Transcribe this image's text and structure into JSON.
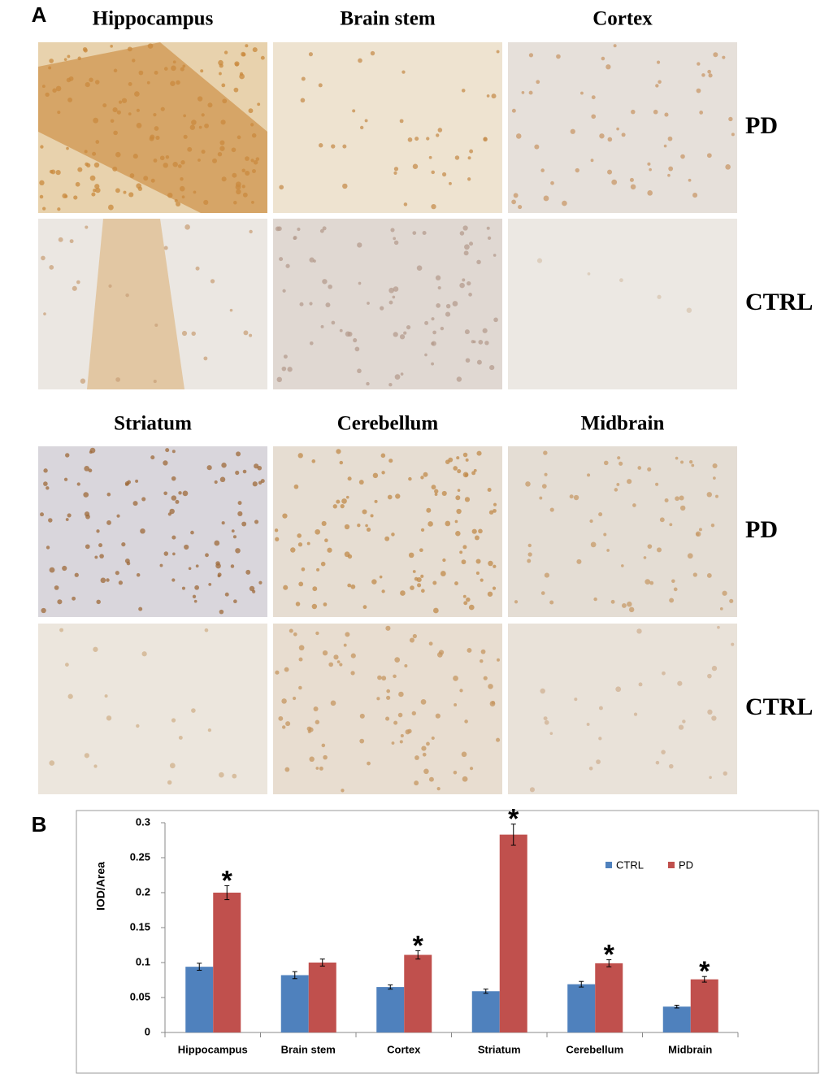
{
  "panel_a": {
    "label": "A",
    "blocks": [
      {
        "titles": [
          "Hippocampus",
          "Brain stem",
          "Cortex"
        ],
        "row_labels": [
          "PD",
          "CTRL"
        ]
      },
      {
        "titles": [
          "Striatum",
          "Cerebellum",
          "Midbrain"
        ],
        "row_labels": [
          "PD",
          "CTRL"
        ]
      }
    ]
  },
  "panel_b": {
    "label": "B"
  },
  "chart_data": {
    "type": "bar",
    "y_label": "IOD/Area",
    "categories": [
      "Hippocampus",
      "Brain stem",
      "Cortex",
      "Striatum",
      "Cerebellum",
      "Midbrain"
    ],
    "series": [
      {
        "name": "CTRL",
        "color": "#4f81bd",
        "values": [
          0.094,
          0.082,
          0.065,
          0.059,
          0.069,
          0.037
        ],
        "errors": [
          0.005,
          0.005,
          0.003,
          0.003,
          0.004,
          0.002
        ]
      },
      {
        "name": "PD",
        "color": "#c0504d",
        "values": [
          0.2,
          0.1,
          0.111,
          0.283,
          0.099,
          0.076
        ],
        "errors": [
          0.01,
          0.005,
          0.006,
          0.015,
          0.005,
          0.004
        ],
        "annotations": [
          "*",
          null,
          "*",
          "*",
          "*",
          "*"
        ]
      }
    ],
    "ylim": [
      0,
      0.3
    ],
    "yticks": [
      0,
      0.05,
      0.1,
      0.15,
      0.2,
      0.25,
      0.3
    ],
    "grid": false,
    "legend": "upper right"
  }
}
